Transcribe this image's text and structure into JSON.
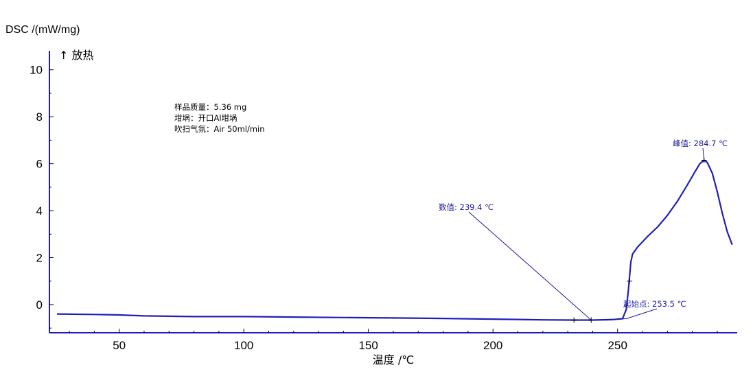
{
  "chart_data": {
    "type": "line",
    "title": "",
    "ylabel": "DSC /(mW/mg)",
    "exo_label": "↑ 放热",
    "xlabel": "温度 /℃",
    "xlim": [
      22,
      298
    ],
    "ylim": [
      -1.2,
      10.4
    ],
    "xticks": [
      50,
      100,
      150,
      200,
      250
    ],
    "yticks": [
      0,
      2,
      4,
      6,
      8,
      10
    ],
    "grid": false,
    "line_color": "#1f1fb8",
    "axis_color": "#1f1fb8",
    "annotation_color": "#1a1a9e",
    "info_lines": [
      "样品质量：5.36 mg",
      "坩埚：开口Al坩埚",
      "吹扫气氛：Air 50ml/min"
    ],
    "series": [
      {
        "x": [
          25,
          40,
          50,
          60,
          80,
          100,
          120,
          140,
          160,
          180,
          200,
          220,
          232,
          240,
          248,
          252,
          253.5,
          254.3,
          254.8,
          255.3,
          256,
          258,
          262,
          266,
          270,
          274,
          278,
          281,
          283,
          284.7,
          286,
          288,
          290,
          292,
          294,
          296
        ],
        "y": [
          -0.4,
          -0.42,
          -0.44,
          -0.48,
          -0.51,
          -0.51,
          -0.53,
          -0.55,
          -0.57,
          -0.59,
          -0.62,
          -0.65,
          -0.66,
          -0.66,
          -0.64,
          -0.6,
          -0.2,
          0.6,
          1.2,
          1.8,
          2.15,
          2.45,
          2.9,
          3.3,
          3.8,
          4.4,
          5.1,
          5.65,
          6.0,
          6.15,
          6.05,
          5.6,
          4.8,
          3.9,
          3.1,
          2.55
        ]
      }
    ],
    "annotations": [
      {
        "label": "数值: 239.4 ℃",
        "x": 239.4,
        "y": -0.66
      },
      {
        "label": "起始点: 253.5 ℃",
        "x": 253.5,
        "y": -0.6
      },
      {
        "label": "峰值: 284.7 ℃",
        "x": 284.7,
        "y": 6.15
      }
    ]
  }
}
